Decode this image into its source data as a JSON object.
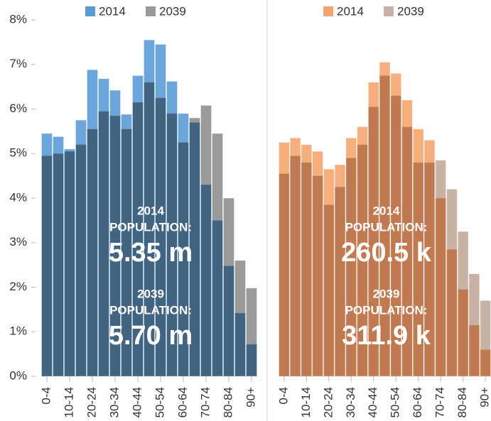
{
  "chart_data": [
    {
      "type": "bar",
      "categories": [
        "0-4",
        null,
        "10-14",
        null,
        "20-24",
        null,
        "30-34",
        null,
        "40-44",
        null,
        "50-54",
        null,
        "60-64",
        null,
        "70-74",
        null,
        "80-84",
        null,
        "90+"
      ],
      "series": [
        {
          "name": "2014",
          "color": "#5b9bd5",
          "values": [
            5.45,
            5.38,
            5.1,
            5.75,
            6.88,
            6.68,
            6.42,
            5.88,
            6.75,
            7.55,
            7.45,
            6.62,
            5.9,
            5.7,
            4.3,
            3.5,
            2.48,
            1.42,
            0.72
          ]
        },
        {
          "name": "2039",
          "color": "#9a9a9a",
          "values": [
            4.95,
            5.0,
            5.05,
            5.2,
            5.55,
            5.95,
            5.85,
            5.55,
            6.15,
            6.6,
            6.25,
            5.9,
            5.25,
            5.8,
            6.08,
            5.45,
            4.0,
            2.6,
            1.98
          ]
        }
      ],
      "ylim": [
        0,
        8
      ],
      "yticks": [
        {
          "value": 0,
          "label": "0%"
        },
        {
          "value": 1,
          "label": "1%"
        },
        {
          "value": 2,
          "label": "2%"
        },
        {
          "value": 3,
          "label": "3%"
        },
        {
          "value": 4,
          "label": "4%"
        },
        {
          "value": 5,
          "label": "5%"
        },
        {
          "value": 6,
          "label": "6%"
        },
        {
          "value": 7,
          "label": "7%"
        },
        {
          "value": 8,
          "label": "8%"
        }
      ],
      "annotations": [
        {
          "year": "2014",
          "label": "POPULATION:",
          "value": "5.35 m"
        },
        {
          "year": "2039",
          "label": "POPULATION:",
          "value": "5.70 m"
        }
      ]
    },
    {
      "type": "bar",
      "categories": [
        "0-4",
        null,
        "10-14",
        null,
        "20-24",
        null,
        "30-34",
        null,
        "40-44",
        null,
        "50-54",
        null,
        "60-64",
        null,
        "70-74",
        null,
        "80-84",
        null,
        "90+"
      ],
      "series": [
        {
          "name": "2014",
          "color": "#f4a56e",
          "values": [
            5.25,
            5.35,
            5.2,
            5.05,
            4.65,
            4.75,
            5.35,
            5.6,
            6.6,
            7.05,
            6.8,
            6.2,
            5.55,
            5.3,
            4.0,
            2.85,
            1.95,
            1.15,
            0.6
          ]
        },
        {
          "name": "2039",
          "color": "#c8b2a4",
          "values": [
            4.55,
            4.95,
            4.8,
            4.5,
            3.85,
            4.25,
            4.9,
            5.2,
            6.05,
            6.75,
            6.3,
            5.6,
            4.8,
            4.8,
            4.85,
            4.2,
            3.25,
            2.3,
            1.7
          ]
        }
      ],
      "ylim": [
        0,
        8
      ],
      "annotations": [
        {
          "year": "2014",
          "label": "POPULATION:",
          "value": "260.5 k"
        },
        {
          "year": "2039",
          "label": "POPULATION:",
          "value": "311.9 k"
        }
      ]
    }
  ]
}
